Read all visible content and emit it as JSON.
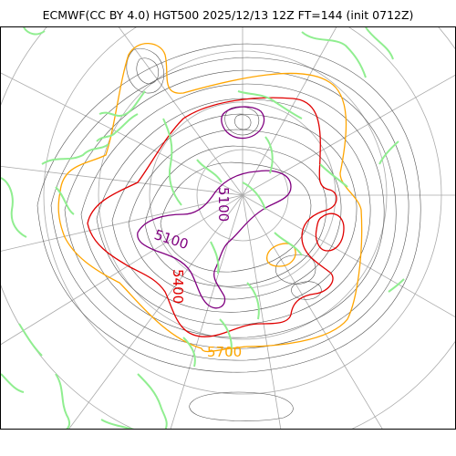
{
  "title": "ECMWF(CC BY 4.0) HGT500 2025/12/13 12Z FT=144 (init 0712Z)",
  "contour_labels": {
    "purple": "5100",
    "purple2": "5100",
    "red": "5400",
    "orange": "5700"
  },
  "colors": {
    "coastline": "#90ee90",
    "grid": "#aaaaaa",
    "contour_thin": "#555555",
    "c5100": "#800080",
    "c5400": "#e00000",
    "c5700": "#ffa500"
  }
}
